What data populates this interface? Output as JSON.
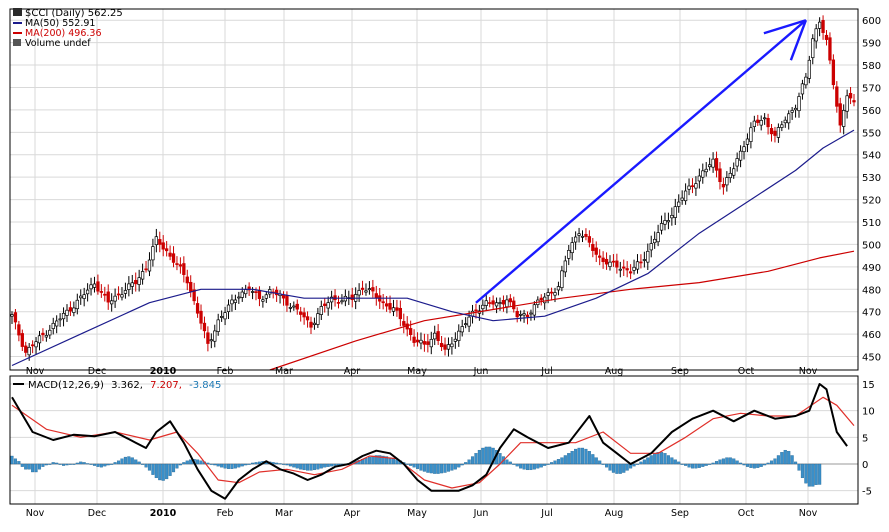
{
  "chart_data": [
    {
      "type": "candlestick",
      "panel": "price",
      "legend": {
        "symbol": "$CCI (Daily) 562.25",
        "ma50": "MA(50) 552.91",
        "ma200": "MA(200) 496.36",
        "volume": "Volume undef"
      },
      "ylim": [
        444,
        605
      ],
      "yticks": [
        450,
        460,
        470,
        480,
        490,
        500,
        510,
        520,
        530,
        540,
        550,
        560,
        570,
        580,
        590,
        600
      ],
      "xticks": [
        "Nov",
        "Dec",
        "2010",
        "Feb",
        "Mar",
        "Apr",
        "May",
        "Jun",
        "Jul",
        "Aug",
        "Sep",
        "Oct",
        "Nov"
      ],
      "close_path": [
        [
          0,
          468
        ],
        [
          4,
          452
        ],
        [
          8,
          458
        ],
        [
          12,
          464
        ],
        [
          16,
          470
        ],
        [
          20,
          476
        ],
        [
          24,
          483
        ],
        [
          28,
          474
        ],
        [
          32,
          479
        ],
        [
          36,
          483
        ],
        [
          39,
          490
        ],
        [
          42,
          502
        ],
        [
          45,
          497
        ],
        [
          48,
          491
        ],
        [
          51,
          484
        ],
        [
          54,
          470
        ],
        [
          57,
          455
        ],
        [
          60,
          466
        ],
        [
          63,
          472
        ],
        [
          66,
          478
        ],
        [
          69,
          480
        ],
        [
          72,
          476
        ],
        [
          75,
          479
        ],
        [
          78,
          477
        ],
        [
          81,
          473
        ],
        [
          84,
          469
        ],
        [
          87,
          464
        ],
        [
          90,
          471
        ],
        [
          93,
          476
        ],
        [
          96,
          475
        ],
        [
          99,
          476
        ],
        [
          102,
          481
        ],
        [
          105,
          478
        ],
        [
          108,
          474
        ],
        [
          111,
          471
        ],
        [
          114,
          465
        ],
        [
          117,
          457
        ],
        [
          120,
          455
        ],
        [
          123,
          460
        ],
        [
          126,
          452
        ],
        [
          129,
          459
        ],
        [
          132,
          465
        ],
        [
          135,
          471
        ],
        [
          138,
          474
        ],
        [
          141,
          473
        ],
        [
          144,
          476
        ],
        [
          147,
          468
        ],
        [
          150,
          469
        ],
        [
          153,
          474
        ],
        [
          156,
          478
        ],
        [
          159,
          481
        ],
        [
          162,
          498
        ],
        [
          165,
          506
        ],
        [
          168,
          500
        ],
        [
          171,
          494
        ],
        [
          174,
          491
        ],
        [
          177,
          490
        ],
        [
          180,
          488
        ],
        [
          183,
          492
        ],
        [
          186,
          500
        ],
        [
          189,
          508
        ],
        [
          192,
          514
        ],
        [
          195,
          521
        ],
        [
          198,
          527
        ],
        [
          201,
          532
        ],
        [
          204,
          537
        ],
        [
          207,
          526
        ],
        [
          210,
          534
        ],
        [
          213,
          545
        ],
        [
          216,
          554
        ],
        [
          219,
          556
        ],
        [
          222,
          548
        ],
        [
          225,
          556
        ],
        [
          228,
          562
        ],
        [
          231,
          574
        ],
        [
          233,
          592
        ],
        [
          235,
          600
        ],
        [
          237,
          590
        ],
        [
          239,
          572
        ],
        [
          241,
          553
        ],
        [
          243,
          567
        ],
        [
          245,
          562
        ]
      ],
      "ma50_path": [
        [
          0,
          446
        ],
        [
          20,
          460
        ],
        [
          40,
          474
        ],
        [
          55,
          480
        ],
        [
          70,
          480
        ],
        [
          85,
          476
        ],
        [
          100,
          476
        ],
        [
          115,
          476
        ],
        [
          128,
          470
        ],
        [
          140,
          466
        ],
        [
          155,
          468
        ],
        [
          170,
          476
        ],
        [
          185,
          487
        ],
        [
          200,
          505
        ],
        [
          215,
          520
        ],
        [
          228,
          533
        ],
        [
          236,
          543
        ],
        [
          245,
          551
        ]
      ],
      "ma200_path": [
        [
          75,
          444
        ],
        [
          100,
          457
        ],
        [
          120,
          466
        ],
        [
          140,
          471
        ],
        [
          160,
          476
        ],
        [
          180,
          480
        ],
        [
          200,
          483
        ],
        [
          220,
          488
        ],
        [
          235,
          494
        ],
        [
          245,
          497
        ]
      ],
      "annotation_arrow": {
        "from": [
          135,
          474
        ],
        "to": [
          231,
          600
        ]
      }
    },
    {
      "type": "macd",
      "panel": "indicator",
      "legend": {
        "name": "MACD(12,26,9)",
        "macd": "3.362,",
        "signal": "7.207,",
        "histogram": "-3.845"
      },
      "ylim": [
        -7.5,
        16.5
      ],
      "yticks": [
        15,
        10,
        5,
        0,
        -5
      ],
      "xticks": [
        "Nov",
        "Dec",
        "2010",
        "Feb",
        "Mar",
        "Apr",
        "May",
        "Jun",
        "Jul",
        "Aug",
        "Sep",
        "Oct",
        "Nov"
      ],
      "macd_path": [
        [
          0,
          12.5
        ],
        [
          6,
          6
        ],
        [
          12,
          4.5
        ],
        [
          18,
          5.5
        ],
        [
          24,
          5.2
        ],
        [
          30,
          6
        ],
        [
          36,
          4
        ],
        [
          39,
          3
        ],
        [
          42,
          6
        ],
        [
          46,
          8
        ],
        [
          50,
          4
        ],
        [
          54,
          -1
        ],
        [
          58,
          -5
        ],
        [
          62,
          -6.5
        ],
        [
          66,
          -3
        ],
        [
          70,
          -1
        ],
        [
          74,
          0.5
        ],
        [
          78,
          -1
        ],
        [
          82,
          -1.8
        ],
        [
          86,
          -3
        ],
        [
          90,
          -2
        ],
        [
          94,
          -0.5
        ],
        [
          98,
          0
        ],
        [
          102,
          1.5
        ],
        [
          106,
          2.5
        ],
        [
          110,
          2
        ],
        [
          114,
          0
        ],
        [
          118,
          -3
        ],
        [
          122,
          -5
        ],
        [
          126,
          -5
        ],
        [
          130,
          -5
        ],
        [
          134,
          -4
        ],
        [
          138,
          -2
        ],
        [
          142,
          3
        ],
        [
          146,
          6.5
        ],
        [
          150,
          5
        ],
        [
          156,
          3
        ],
        [
          162,
          4
        ],
        [
          168,
          9
        ],
        [
          172,
          4
        ],
        [
          176,
          2
        ],
        [
          180,
          0
        ],
        [
          186,
          2
        ],
        [
          192,
          6
        ],
        [
          198,
          8.5
        ],
        [
          204,
          10
        ],
        [
          210,
          8
        ],
        [
          216,
          10
        ],
        [
          222,
          8.5
        ],
        [
          228,
          9
        ],
        [
          232,
          10
        ],
        [
          235,
          15
        ],
        [
          237,
          14
        ],
        [
          240,
          6
        ],
        [
          243,
          3.362
        ]
      ],
      "signal_path": [
        [
          0,
          11
        ],
        [
          10,
          6.5
        ],
        [
          20,
          5
        ],
        [
          30,
          6
        ],
        [
          40,
          4.5
        ],
        [
          48,
          6
        ],
        [
          54,
          2
        ],
        [
          60,
          -3
        ],
        [
          66,
          -3.5
        ],
        [
          72,
          -1.5
        ],
        [
          80,
          -1
        ],
        [
          88,
          -2
        ],
        [
          96,
          -1
        ],
        [
          104,
          1.5
        ],
        [
          112,
          1
        ],
        [
          120,
          -3
        ],
        [
          128,
          -4.5
        ],
        [
          136,
          -3.5
        ],
        [
          142,
          0
        ],
        [
          148,
          4
        ],
        [
          156,
          4
        ],
        [
          164,
          4
        ],
        [
          172,
          6
        ],
        [
          180,
          2
        ],
        [
          188,
          2
        ],
        [
          196,
          5
        ],
        [
          204,
          8.5
        ],
        [
          212,
          9.5
        ],
        [
          220,
          9
        ],
        [
          228,
          9
        ],
        [
          236,
          12.5
        ],
        [
          240,
          11
        ],
        [
          245,
          7.207
        ]
      ],
      "histogram": [
        1.5,
        1,
        0.5,
        -0.5,
        -1,
        -1,
        -1.5,
        -1.5,
        -1,
        -0.5,
        -0.2,
        0,
        0.3,
        0.2,
        -0.1,
        -0.3,
        -0.2,
        -0.1,
        0,
        0.2,
        0.4,
        0.3,
        0.1,
        -0.1,
        -0.3,
        -0.5,
        -0.6,
        -0.4,
        -0.2,
        0,
        0.3,
        0.6,
        1,
        1.3,
        1.4,
        1.2,
        0.8,
        0.4,
        0,
        -0.6,
        -1.2,
        -2,
        -2.6,
        -3,
        -3.1,
        -2.8,
        -2.2,
        -1.5,
        -0.8,
        -0.2,
        0.3,
        0.6,
        0.8,
        0.9,
        0.8,
        0.6,
        0.4,
        0.2,
        0,
        -0.2,
        -0.4,
        -0.6,
        -0.8,
        -0.9,
        -0.9,
        -0.8,
        -0.6,
        -0.4,
        -0.2,
        0,
        0.2,
        0.3,
        0.4,
        0.5,
        0.5,
        0.4,
        0.3,
        0.2,
        0.1,
        0,
        -0.2,
        -0.4,
        -0.6,
        -0.8,
        -1,
        -1.1,
        -1.2,
        -1.2,
        -1.1,
        -1,
        -0.8,
        -0.6,
        -0.5,
        -0.4,
        -0.3,
        -0.2,
        -0.1,
        0,
        0.1,
        0.3,
        0.5,
        0.7,
        0.9,
        1.1,
        1.3,
        1.5,
        1.6,
        1.6,
        1.5,
        1.4,
        1.2,
        1,
        0.8,
        0.6,
        0.3,
        0,
        -0.3,
        -0.6,
        -0.9,
        -1.2,
        -1.4,
        -1.6,
        -1.7,
        -1.8,
        -1.8,
        -1.7,
        -1.6,
        -1.4,
        -1.2,
        -1,
        -0.6,
        -0.2,
        0.3,
        0.8,
        1.4,
        2,
        2.6,
        3,
        3.2,
        3.2,
        3,
        2.6,
        2,
        1.4,
        0.8,
        0.4,
        0,
        -0.4,
        -0.8,
        -1,
        -1.1,
        -1.1,
        -1,
        -0.8,
        -0.6,
        -0.3,
        0,
        0.3,
        0.6,
        0.9,
        1.2,
        1.6,
        2,
        2.4,
        2.8,
        3,
        3,
        2.8,
        2.4,
        1.8,
        1.2,
        0.6,
        0,
        -0.6,
        -1.2,
        -1.6,
        -1.8,
        -1.8,
        -1.6,
        -1.2,
        -0.8,
        -0.4,
        0,
        0.4,
        0.8,
        1.2,
        1.6,
        2,
        2.2,
        2.2,
        2,
        1.6,
        1.2,
        0.8,
        0.4,
        0,
        -0.3,
        -0.6,
        -0.8,
        -0.8,
        -0.7,
        -0.5,
        -0.3,
        -0.1,
        0.2,
        0.5,
        0.8,
        1,
        1.2,
        1.2,
        1,
        0.6,
        0.2,
        -0.2,
        -0.5,
        -0.7,
        -0.8,
        -0.7,
        -0.5,
        -0.2,
        0.2,
        0.6,
        1,
        1.6,
        2.2,
        2.6,
        2.4,
        1.6,
        0.4,
        -1.2,
        -2.6,
        -3.6,
        -4.2,
        -4.2,
        -3.9,
        -3.845
      ]
    }
  ]
}
